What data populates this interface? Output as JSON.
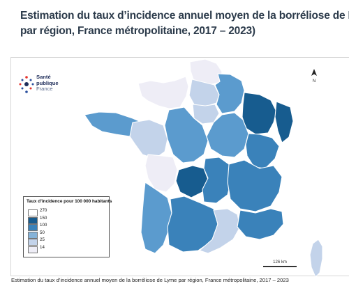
{
  "title": {
    "line1": "Estimation du taux d’incidence annuel moyen de la borréliose de Lyme",
    "line2": "par région, France métropolitaine, 2017 – 2023)"
  },
  "logo": {
    "line1": "Santé",
    "line2": "publique",
    "line3": "France"
  },
  "north_label": "N",
  "legend": {
    "title": "Taux d’incidence pour 100 000 habitants",
    "classes": [
      {
        "label": "270",
        "color": "#ffffff"
      },
      {
        "label": "150",
        "color": "#175c8f"
      },
      {
        "label": "100",
        "color": "#3a82ba"
      },
      {
        "label": "50",
        "color": "#86b3d8"
      },
      {
        "label": "25",
        "color": "#c3d3ea"
      },
      {
        "label": "14",
        "color": "#eeedf6"
      }
    ]
  },
  "scale_label": "126 km",
  "caption": "Estimation du taux d’incidence annuel moyen de la borréliose de Lyme par région, France métropolitaine, 2017 – 2023",
  "colors": {
    "very_high": "#175c8f",
    "high": "#3a82ba",
    "medium": "#5b9bce",
    "low_medium": "#86b3d8",
    "low": "#c3d3ea",
    "very_low": "#eeedf6",
    "title_text": "#2b3a4a"
  }
}
